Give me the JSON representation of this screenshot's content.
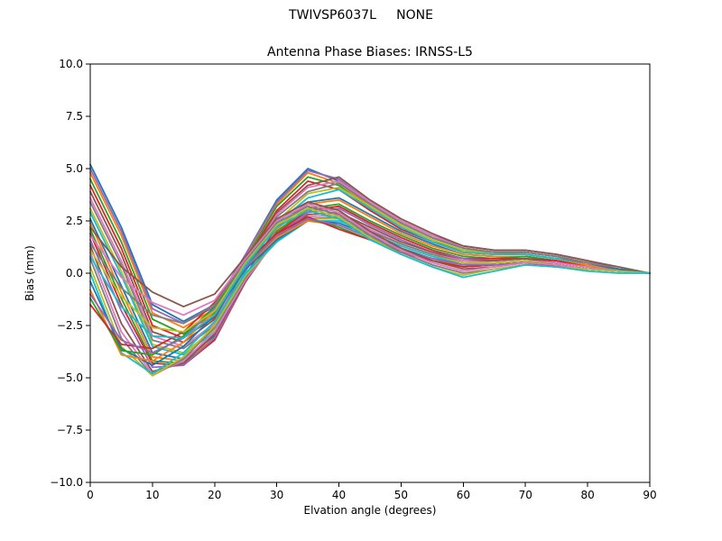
{
  "suptitle": "TWIVSP6037L     NONE",
  "chart_data": {
    "type": "line",
    "title": "Antenna Phase Biases: IRNSS-L5",
    "xlabel": "Elvation angle (degrees)",
    "ylabel": "Bias (mm)",
    "xlim": [
      0,
      90
    ],
    "ylim": [
      -10,
      10
    ],
    "grid": false,
    "legend": "none",
    "xticks": [
      0,
      10,
      20,
      30,
      40,
      50,
      60,
      70,
      80,
      90
    ],
    "xtick_labels": [
      "0",
      "10",
      "20",
      "30",
      "40",
      "50",
      "60",
      "70",
      "80",
      "90"
    ],
    "yticks": [
      -10.0,
      -7.5,
      -5.0,
      -2.5,
      0.0,
      2.5,
      5.0,
      7.5,
      10.0
    ],
    "ytick_labels": [
      "−10.0",
      "−7.5",
      "−5.0",
      "−2.5",
      "0.0",
      "2.5",
      "5.0",
      "7.5",
      "10.0"
    ],
    "palette": [
      "#1f77b4",
      "#ff7f0e",
      "#2ca02c",
      "#d62728",
      "#9467bd",
      "#8c564b",
      "#e377c2",
      "#7f7f7f",
      "#bcbd22",
      "#17becf"
    ],
    "x": [
      0,
      5,
      10,
      15,
      20,
      25,
      30,
      35,
      40,
      45,
      50,
      55,
      60,
      65,
      70,
      75,
      80,
      85,
      90
    ],
    "series": [
      [
        5.2,
        2.2,
        -1.5,
        -2.3,
        -1.5,
        0.9,
        3.5,
        5.0,
        4.4,
        3.3,
        2.4,
        1.7,
        1.2,
        1.0,
        1.0,
        0.8,
        0.5,
        0.2,
        0.0
      ],
      [
        4.8,
        1.8,
        -1.9,
        -2.6,
        -1.7,
        0.8,
        3.3,
        4.8,
        4.3,
        3.2,
        2.3,
        1.6,
        1.1,
        1.0,
        1.0,
        0.8,
        0.5,
        0.2,
        0.0
      ],
      [
        4.5,
        1.5,
        -2.2,
        -2.9,
        -1.9,
        0.7,
        3.2,
        4.6,
        4.2,
        3.1,
        2.2,
        1.5,
        1.1,
        0.9,
        1.0,
        0.8,
        0.5,
        0.2,
        0.0
      ],
      [
        4.2,
        1.2,
        -2.5,
        -3.1,
        -2.1,
        0.6,
        3.0,
        4.4,
        4.0,
        3.0,
        2.1,
        1.5,
        1.0,
        0.9,
        0.9,
        0.7,
        0.5,
        0.2,
        0.0
      ],
      [
        5.0,
        2.0,
        -1.7,
        -2.4,
        -1.6,
        0.9,
        3.4,
        4.9,
        4.5,
        3.4,
        2.5,
        1.8,
        1.3,
        1.1,
        1.1,
        0.9,
        0.6,
        0.2,
        0.0
      ],
      [
        3.9,
        0.9,
        -2.8,
        -3.3,
        -2.2,
        0.5,
        2.9,
        4.2,
        4.6,
        3.5,
        2.6,
        1.9,
        1.3,
        1.1,
        1.1,
        0.9,
        0.6,
        0.3,
        0.0
      ],
      [
        3.6,
        0.6,
        -3.0,
        -3.5,
        -2.4,
        0.4,
        2.8,
        4.1,
        4.4,
        3.4,
        2.5,
        1.8,
        1.2,
        1.0,
        1.0,
        0.8,
        0.5,
        0.2,
        0.0
      ],
      [
        3.4,
        0.4,
        -3.2,
        -3.6,
        -2.5,
        0.3,
        2.7,
        3.9,
        4.3,
        3.3,
        2.4,
        1.7,
        1.2,
        1.0,
        1.0,
        0.8,
        0.5,
        0.2,
        0.0
      ],
      [
        3.1,
        0.1,
        -3.4,
        -3.8,
        -2.7,
        0.2,
        2.5,
        3.8,
        4.1,
        3.2,
        2.3,
        1.6,
        1.1,
        0.9,
        0.9,
        0.7,
        0.4,
        0.2,
        0.0
      ],
      [
        2.9,
        -0.1,
        -3.5,
        -3.9,
        -2.8,
        0.1,
        2.4,
        3.6,
        4.0,
        3.1,
        2.2,
        1.5,
        1.0,
        0.9,
        0.9,
        0.7,
        0.4,
        0.2,
        0.0
      ],
      [
        2.6,
        -0.6,
        -3.8,
        -4.1,
        -3.0,
        -0.1,
        2.2,
        3.4,
        3.6,
        2.8,
        2.0,
        1.4,
        0.9,
        0.8,
        0.8,
        0.6,
        0.4,
        0.2,
        0.0
      ],
      [
        2.4,
        -0.9,
        -4.0,
        -4.2,
        -3.1,
        -0.2,
        2.1,
        3.3,
        3.5,
        2.7,
        1.9,
        1.3,
        0.9,
        0.8,
        0.8,
        0.6,
        0.4,
        0.1,
        0.0
      ],
      [
        2.1,
        -1.2,
        -4.2,
        -4.3,
        -3.2,
        -0.3,
        2.0,
        3.1,
        3.3,
        2.5,
        1.8,
        1.2,
        0.8,
        0.7,
        0.8,
        0.6,
        0.3,
        0.1,
        0.0
      ],
      [
        1.9,
        -1.5,
        -4.3,
        -4.4,
        -3.2,
        -0.4,
        1.9,
        3.0,
        3.2,
        2.4,
        1.7,
        1.1,
        0.7,
        0.7,
        0.7,
        0.6,
        0.3,
        0.1,
        0.0
      ],
      [
        1.6,
        -1.8,
        -4.5,
        -4.4,
        -3.1,
        -0.4,
        1.8,
        2.9,
        3.1,
        2.3,
        1.6,
        1.0,
        0.7,
        0.6,
        0.7,
        0.5,
        0.3,
        0.1,
        0.0
      ],
      [
        1.3,
        -2.4,
        -4.7,
        -4.3,
        -2.9,
        -0.4,
        1.7,
        2.8,
        2.9,
        2.2,
        1.5,
        1.0,
        0.6,
        0.6,
        0.7,
        0.5,
        0.3,
        0.1,
        0.0
      ],
      [
        1.0,
        -2.8,
        -4.8,
        -4.2,
        -2.8,
        -0.3,
        1.6,
        2.7,
        2.8,
        2.1,
        1.4,
        0.9,
        0.6,
        0.5,
        0.6,
        0.5,
        0.3,
        0.1,
        0.0
      ],
      [
        0.7,
        -3.1,
        -4.9,
        -4.1,
        -2.6,
        -0.2,
        1.6,
        2.6,
        2.7,
        2.0,
        1.4,
        0.9,
        0.5,
        0.5,
        0.6,
        0.4,
        0.2,
        0.1,
        0.0
      ],
      [
        0.3,
        -3.5,
        -4.9,
        -4.0,
        -2.5,
        -0.1,
        1.5,
        2.6,
        2.6,
        1.9,
        1.3,
        0.8,
        0.5,
        0.5,
        0.6,
        0.4,
        0.2,
        0.1,
        0.0
      ],
      [
        0.0,
        -3.8,
        -4.8,
        -3.8,
        -2.3,
        0.0,
        1.5,
        2.5,
        2.5,
        1.9,
        1.3,
        0.8,
        0.4,
        0.4,
        0.5,
        0.4,
        0.2,
        0.1,
        0.0
      ],
      [
        -0.4,
        -3.6,
        -4.4,
        -3.5,
        -2.0,
        0.2,
        1.6,
        2.5,
        2.4,
        1.8,
        1.2,
        0.7,
        0.4,
        0.4,
        0.5,
        0.4,
        0.2,
        0.1,
        0.0
      ],
      [
        -0.8,
        -3.9,
        -4.2,
        -3.3,
        -1.8,
        0.3,
        1.7,
        2.5,
        2.3,
        1.7,
        1.1,
        0.7,
        0.3,
        0.4,
        0.5,
        0.3,
        0.2,
        0.1,
        0.0
      ],
      [
        -1.2,
        -3.7,
        -3.9,
        -3.0,
        -1.6,
        0.4,
        1.8,
        2.6,
        2.2,
        1.6,
        1.1,
        0.6,
        0.3,
        0.4,
        0.5,
        0.3,
        0.2,
        0.1,
        0.0
      ],
      [
        -1.5,
        -3.4,
        -3.6,
        -2.8,
        -1.4,
        0.5,
        1.9,
        2.7,
        2.1,
        1.6,
        1.0,
        0.6,
        0.3,
        0.4,
        0.5,
        0.3,
        0.2,
        0.1,
        0.0
      ],
      [
        -1.0,
        -3.2,
        -3.8,
        -3.1,
        -1.7,
        0.3,
        1.8,
        2.6,
        2.3,
        1.7,
        1.1,
        0.7,
        0.4,
        0.4,
        0.5,
        0.4,
        0.2,
        0.1,
        0.0
      ],
      [
        2.2,
        0.3,
        -0.9,
        -1.6,
        -1.0,
        0.8,
        2.6,
        3.4,
        3.0,
        2.0,
        1.2,
        0.6,
        0.2,
        0.3,
        0.5,
        0.4,
        0.2,
        0.1,
        0.0
      ],
      [
        1.8,
        -0.2,
        -1.4,
        -2.0,
        -1.3,
        0.7,
        2.5,
        3.3,
        2.9,
        1.9,
        1.1,
        0.5,
        0.1,
        0.3,
        0.5,
        0.4,
        0.2,
        0.1,
        0.0
      ],
      [
        1.4,
        -0.7,
        -2.0,
        -2.4,
        -1.5,
        0.6,
        2.4,
        3.2,
        2.8,
        1.8,
        1.0,
        0.4,
        0.0,
        0.2,
        0.4,
        0.3,
        0.2,
        0.1,
        0.0
      ],
      [
        1.1,
        -1.1,
        -2.6,
        -2.8,
        -1.8,
        0.5,
        2.3,
        3.1,
        2.7,
        1.7,
        0.9,
        0.3,
        -0.1,
        0.2,
        0.4,
        0.3,
        0.2,
        0.1,
        0.0
      ],
      [
        0.8,
        -1.6,
        -3.0,
        -3.1,
        -2.0,
        0.4,
        2.2,
        3.0,
        2.6,
        1.6,
        0.9,
        0.3,
        -0.2,
        0.1,
        0.4,
        0.3,
        0.1,
        0.0,
        0.0
      ]
    ]
  }
}
